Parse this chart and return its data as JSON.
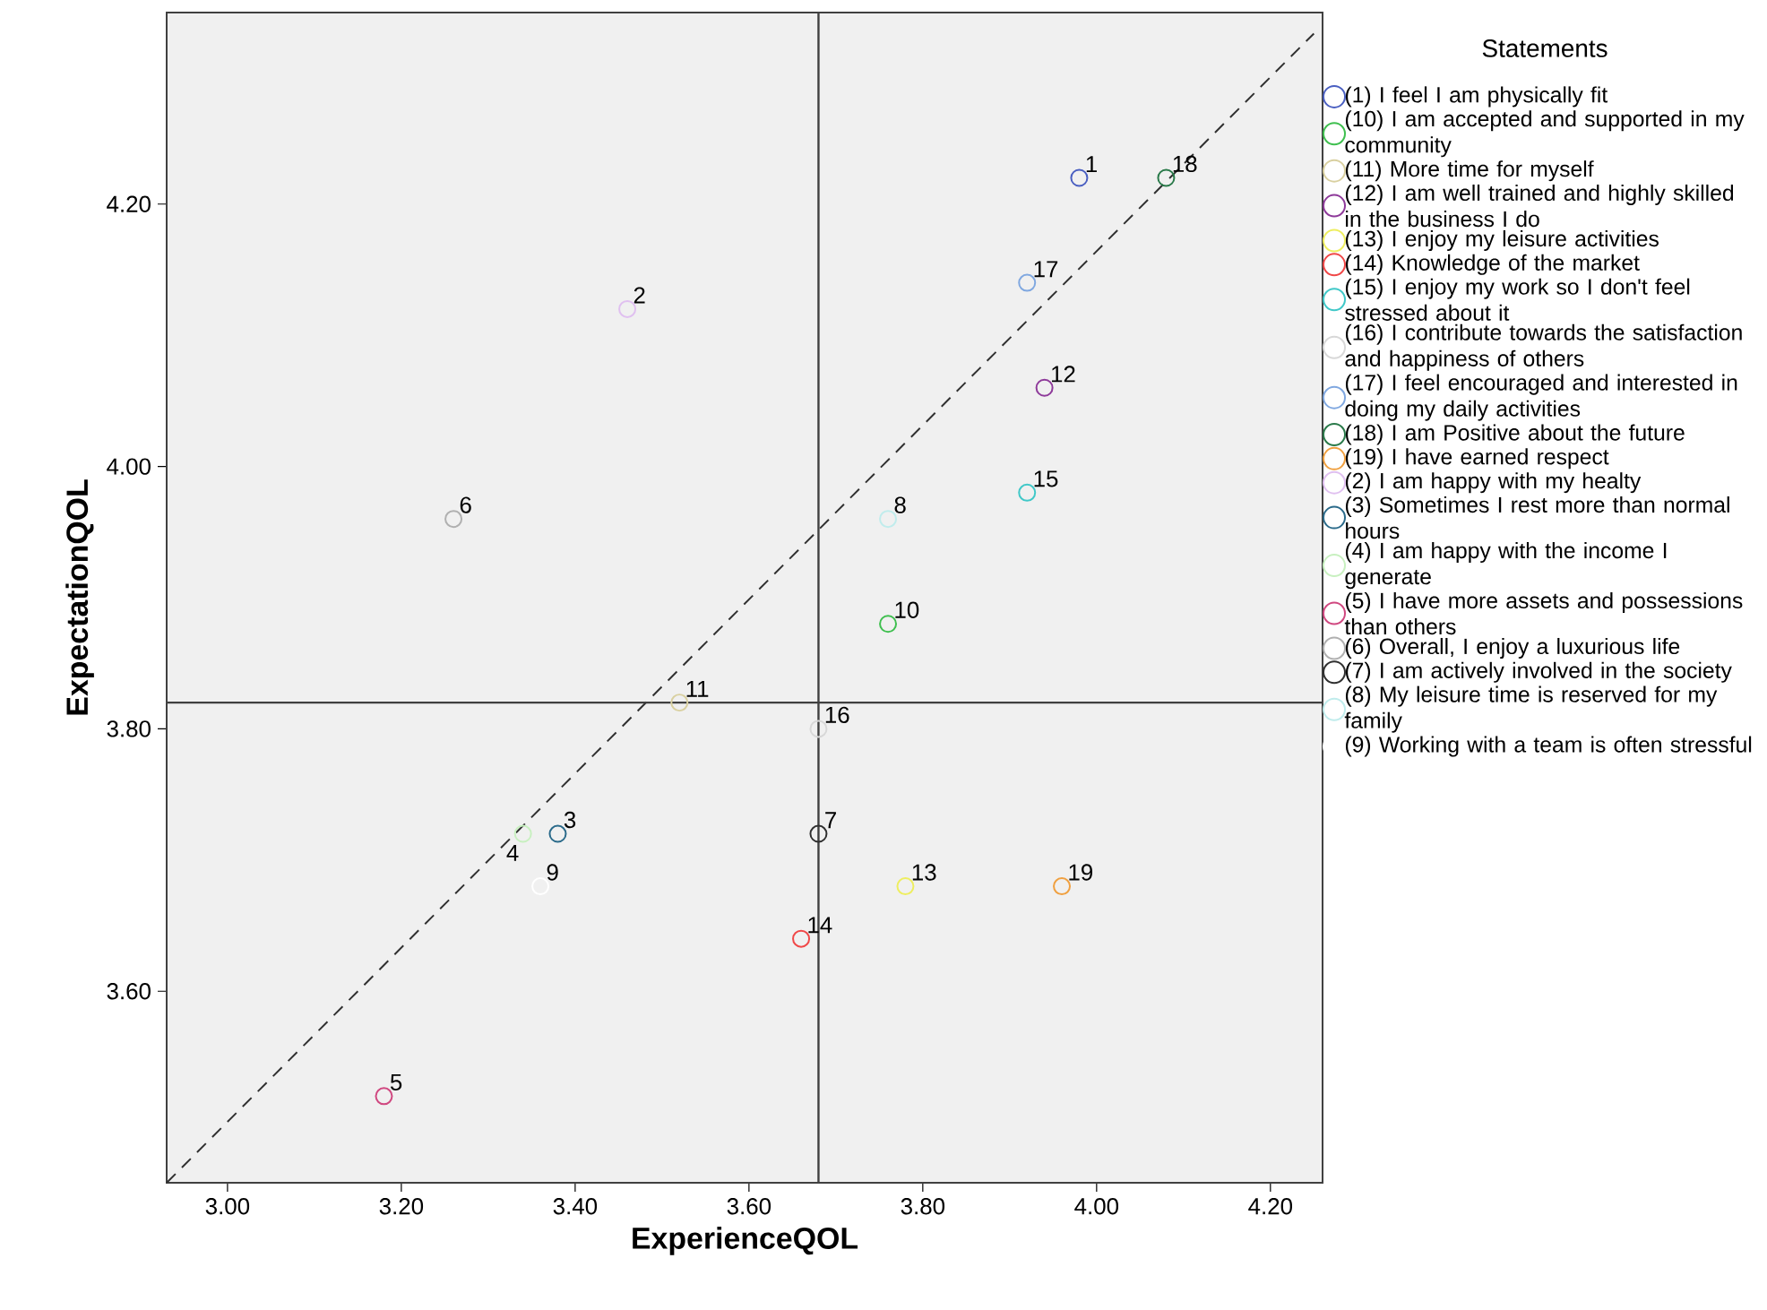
{
  "chart_data": {
    "type": "scatter",
    "xlabel": "ExperienceQOL",
    "ylabel": "ExpectationQOL",
    "legend_title": "Statements",
    "legend": "right",
    "marker": "circle",
    "grid": false,
    "xlim": [
      2.93,
      4.26
    ],
    "ylim": [
      3.454,
      4.346
    ],
    "xticks": [
      {
        "value": 3.0,
        "label": "3.00"
      },
      {
        "value": 3.2,
        "label": "3.20"
      },
      {
        "value": 3.4,
        "label": "3.40"
      },
      {
        "value": 3.6,
        "label": "3.60"
      },
      {
        "value": 3.8,
        "label": "3.80"
      },
      {
        "value": 4.0,
        "label": "4.00"
      },
      {
        "value": 4.2,
        "label": "4.20"
      }
    ],
    "yticks": [
      {
        "value": 3.6,
        "label": "3.60"
      },
      {
        "value": 3.8,
        "label": "3.80"
      },
      {
        "value": 4.0,
        "label": "4.00"
      },
      {
        "value": 4.2,
        "label": "4.20"
      }
    ],
    "ref_lines": [
      {
        "axis": "x",
        "value": 3.68,
        "color": "#404040"
      },
      {
        "axis": "y",
        "value": 3.82,
        "color": "#404040"
      }
    ],
    "series": [
      {
        "name": "(1) I feel I am physically fit",
        "color": "#4a5fc1",
        "x": [
          3.98
        ],
        "values": [
          4.22
        ]
      },
      {
        "name": "(10) I am accepted and supported in my community",
        "color": "#3fbf4f",
        "x": [
          3.76
        ],
        "values": [
          3.88
        ]
      },
      {
        "name": "(11) More time for myself",
        "color": "#d9d0a0",
        "x": [
          3.52
        ],
        "values": [
          3.82
        ]
      },
      {
        "name": "(12) I am well trained and highly skilled in the business I do",
        "color": "#8e3a9a",
        "x": [
          3.94
        ],
        "values": [
          4.06
        ]
      },
      {
        "name": "(13) I enjoy my leisure activities",
        "color": "#eeee60",
        "x": [
          3.78
        ],
        "values": [
          3.68
        ]
      },
      {
        "name": "(14) Knowledge of the market",
        "color": "#f04848",
        "x": [
          3.66
        ],
        "values": [
          3.64
        ]
      },
      {
        "name": "(15) I enjoy my work so I don't feel stressed about it",
        "color": "#40c8c8",
        "x": [
          3.92
        ],
        "values": [
          3.98
        ]
      },
      {
        "name": "(16) I contribute towards the satisfaction and happiness of others",
        "color": "#d8d8d8",
        "x": [
          3.68
        ],
        "values": [
          3.8
        ]
      },
      {
        "name": "(17) I feel encouraged and interested in doing my daily activities",
        "color": "#80a8e0",
        "x": [
          3.92
        ],
        "values": [
          4.14
        ]
      },
      {
        "name": "(18) I am Positive about the future",
        "color": "#2a7a4a",
        "x": [
          4.08
        ],
        "values": [
          4.22
        ]
      },
      {
        "name": "(19) I have earned respect",
        "color": "#f0a040",
        "x": [
          3.96
        ],
        "values": [
          3.68
        ]
      },
      {
        "name": "(2) I am happy with my healty",
        "color": "#e0c0f0",
        "x": [
          3.46
        ],
        "values": [
          4.12
        ]
      },
      {
        "name": "(3) Sometimes I rest more than normal hours",
        "color": "#2a6a8a",
        "x": [
          3.38
        ],
        "values": [
          3.72
        ]
      },
      {
        "name": "(4) I am happy with the income I generate",
        "color": "#c8f0c0",
        "x": [
          3.34
        ],
        "values": [
          3.72
        ]
      },
      {
        "name": "(5) I have more assets and possessions than others",
        "color": "#d04880",
        "x": [
          3.18
        ],
        "values": [
          3.52
        ]
      },
      {
        "name": "(6) Overall, I enjoy a luxurious life",
        "color": "#b0b0b0",
        "x": [
          3.26
        ],
        "values": [
          3.96
        ]
      },
      {
        "name": "(7) I am actively involved in the society",
        "color": "#303030",
        "x": [
          3.68
        ],
        "values": [
          3.72
        ]
      },
      {
        "name": "(8) My leisure time is reserved for my family",
        "color": "#c0ecec",
        "x": [
          3.76
        ],
        "values": [
          3.96
        ]
      },
      {
        "name": "(9) Working with a team is often stressful",
        "color": "#ffffff",
        "x": [
          3.36
        ],
        "values": [
          3.68
        ]
      },
      {
        "type": "line",
        "color": "#303030",
        "line_style": "dashed",
        "marker": "none",
        "x": [
          2.93,
          4.25
        ],
        "values": [
          3.454,
          4.33
        ]
      }
    ],
    "annotations": [
      {
        "text": "1",
        "x": 3.98,
        "y": 4.22
      },
      {
        "text": "10",
        "x": 3.76,
        "y": 3.88
      },
      {
        "text": "11",
        "x": 3.52,
        "y": 3.82
      },
      {
        "text": "12",
        "x": 3.94,
        "y": 4.06
      },
      {
        "text": "13",
        "x": 3.78,
        "y": 3.68
      },
      {
        "text": "14",
        "x": 3.66,
        "y": 3.64
      },
      {
        "text": "15",
        "x": 3.92,
        "y": 3.98
      },
      {
        "text": "16",
        "x": 3.68,
        "y": 3.8
      },
      {
        "text": "17",
        "x": 3.92,
        "y": 4.14
      },
      {
        "text": "18",
        "x": 4.08,
        "y": 4.22
      },
      {
        "text": "19",
        "x": 3.96,
        "y": 3.68
      },
      {
        "text": "2",
        "x": 3.46,
        "y": 4.12
      },
      {
        "text": "3",
        "x": 3.38,
        "y": 3.72
      },
      {
        "text": "4",
        "x": 3.34,
        "y": 3.72
      },
      {
        "text": "5",
        "x": 3.18,
        "y": 3.52
      },
      {
        "text": "6",
        "x": 3.26,
        "y": 3.96
      },
      {
        "text": "7",
        "x": 3.68,
        "y": 3.72
      },
      {
        "text": "8",
        "x": 3.76,
        "y": 3.96
      },
      {
        "text": "9",
        "x": 3.36,
        "y": 3.68
      }
    ]
  }
}
